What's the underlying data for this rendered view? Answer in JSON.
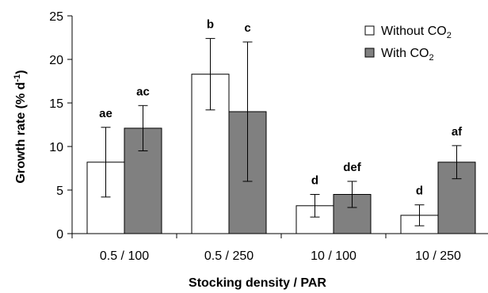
{
  "chart_data": {
    "type": "bar",
    "xlabel": "Stocking density / PAR",
    "ylabel": "Growth rate (% d",
    "ylabel_sup": "-1",
    "ylabel_close": ")",
    "ylim": [
      0,
      25
    ],
    "yticks": [
      0,
      5,
      10,
      15,
      20,
      25
    ],
    "grid": false,
    "legend_position": "top-right",
    "categories": [
      "0.5 / 100",
      "0.5 / 250",
      "10 / 100",
      "10 / 250"
    ],
    "series": [
      {
        "name": "Without CO",
        "name_sub": "2",
        "color": "#ffffff",
        "values": [
          8.2,
          18.3,
          3.2,
          2.1
        ],
        "error": [
          4.0,
          4.1,
          1.3,
          1.2
        ],
        "letters": [
          "ae",
          "b",
          "d",
          "d"
        ]
      },
      {
        "name": "With CO",
        "name_sub": "2",
        "color": "#808080",
        "values": [
          12.1,
          14.0,
          4.5,
          8.2
        ],
        "error": [
          2.6,
          8.0,
          1.5,
          1.9
        ],
        "letters": [
          "ac",
          "c",
          "def",
          "af"
        ]
      }
    ]
  }
}
